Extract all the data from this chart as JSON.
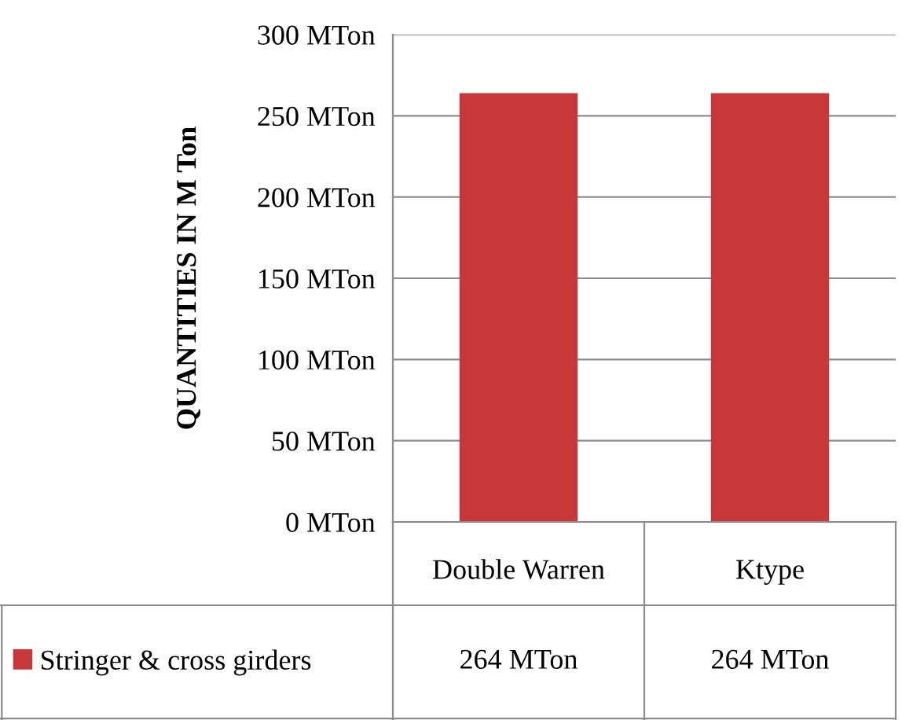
{
  "chart_data": {
    "type": "bar",
    "ylabel": "QUANTITIES IN M Ton",
    "categories": [
      "Double Warren",
      "Ktype"
    ],
    "series": [
      {
        "name": "Stringer & cross girders",
        "color": "#c8383a",
        "values": [
          264,
          264
        ],
        "value_labels": [
          "264 MTon",
          "264 MTon"
        ]
      }
    ],
    "ylim": [
      0,
      300
    ],
    "yticks": [
      {
        "value": 0,
        "label": "0 MTon"
      },
      {
        "value": 50,
        "label": "50 MTon"
      },
      {
        "value": 100,
        "label": "100 MTon"
      },
      {
        "value": 150,
        "label": "150 MTon"
      },
      {
        "value": 200,
        "label": "200 MTon"
      },
      {
        "value": 250,
        "label": "250 MTon"
      },
      {
        "value": 300,
        "label": "300 MTon"
      }
    ],
    "grid": "y",
    "legend": "bottom left"
  }
}
